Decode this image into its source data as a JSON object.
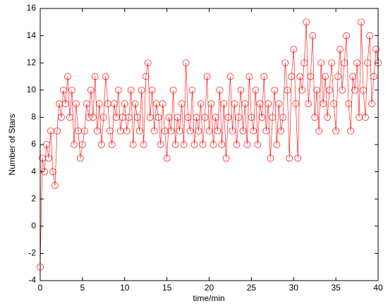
{
  "chart_data": {
    "type": "line",
    "xlabel": "time/min",
    "ylabel": "Number of Stars",
    "color": "#ff0000",
    "marker": "circle",
    "x": [
      0,
      0.25,
      0.5,
      0.75,
      1,
      1.25,
      1.5,
      1.75,
      2,
      2.25,
      2.5,
      2.75,
      3,
      3.25,
      3.5,
      3.75,
      4,
      4.25,
      4.5,
      4.75,
      5,
      5.25,
      5.5,
      5.75,
      6,
      6.25,
      6.5,
      6.75,
      7,
      7.25,
      7.5,
      7.75,
      8,
      8.25,
      8.5,
      8.75,
      9,
      9.25,
      9.5,
      9.75,
      10,
      10.25,
      10.5,
      10.75,
      11,
      11.25,
      11.5,
      11.75,
      12,
      12.25,
      12.5,
      12.75,
      13,
      13.25,
      13.5,
      13.75,
      14,
      14.25,
      14.5,
      14.75,
      15,
      15.25,
      15.5,
      15.75,
      16,
      16.25,
      16.5,
      16.75,
      17,
      17.25,
      17.5,
      17.75,
      18,
      18.25,
      18.5,
      18.75,
      19,
      19.25,
      19.5,
      19.75,
      20,
      20.25,
      20.5,
      20.75,
      21,
      21.25,
      21.5,
      21.75,
      22,
      22.25,
      22.5,
      22.75,
      23,
      23.25,
      23.5,
      23.75,
      24,
      24.25,
      24.5,
      24.75,
      25,
      25.25,
      25.5,
      25.75,
      26,
      26.25,
      26.5,
      26.75,
      27,
      27.25,
      27.5,
      27.75,
      28,
      28.25,
      28.5,
      28.75,
      29,
      29.25,
      29.5,
      29.75,
      30,
      30.25,
      30.5,
      30.75,
      31,
      31.25,
      31.5,
      31.75,
      32,
      32.25,
      32.5,
      32.75,
      33,
      33.25,
      33.5,
      33.75,
      34,
      34.25,
      34.5,
      34.75,
      35,
      35.25,
      35.5,
      35.75,
      36,
      36.25,
      36.5,
      36.75,
      37,
      37.25,
      37.5,
      37.75,
      38,
      38.25,
      38.5,
      38.75,
      39,
      39.25,
      39.5,
      39.75,
      40
    ],
    "values": [
      -3,
      5,
      4,
      6,
      5,
      7,
      4,
      3,
      7,
      9,
      8,
      10,
      9,
      11,
      8,
      10,
      6,
      9,
      7,
      5,
      6,
      7,
      9,
      8,
      10,
      8,
      11,
      7,
      9,
      6,
      8,
      11,
      9,
      7,
      6,
      9,
      8,
      10,
      7,
      8,
      9,
      7,
      8,
      10,
      6,
      9,
      8,
      7,
      10,
      6,
      11,
      12,
      8,
      10,
      7,
      9,
      8,
      6,
      9,
      7,
      5,
      8,
      7,
      10,
      6,
      8,
      7,
      9,
      6,
      12,
      8,
      7,
      10,
      6,
      8,
      7,
      9,
      6,
      8,
      11,
      7,
      9,
      6,
      8,
      7,
      10,
      6,
      9,
      5,
      8,
      11,
      7,
      9,
      6,
      8,
      10,
      7,
      9,
      6,
      11,
      8,
      7,
      10,
      6,
      9,
      8,
      11,
      7,
      9,
      5,
      8,
      10,
      6,
      9,
      7,
      8,
      12,
      10,
      5,
      11,
      13,
      9,
      5,
      11,
      10,
      12,
      15,
      9,
      11,
      14,
      8,
      10,
      7,
      12,
      9,
      11,
      8,
      10,
      12,
      9,
      7,
      11,
      13,
      10,
      12,
      14,
      9,
      7,
      11,
      10,
      12,
      8,
      15,
      10,
      8,
      12,
      14,
      9,
      11,
      13,
      12
    ],
    "xlim": [
      0,
      40
    ],
    "xticks": [
      0,
      5,
      10,
      15,
      20,
      25,
      30,
      35,
      40
    ],
    "ylim": [
      -4,
      16
    ],
    "yticks": [
      -4,
      -2,
      0,
      2,
      4,
      6,
      8,
      10,
      12,
      14,
      16
    ]
  }
}
